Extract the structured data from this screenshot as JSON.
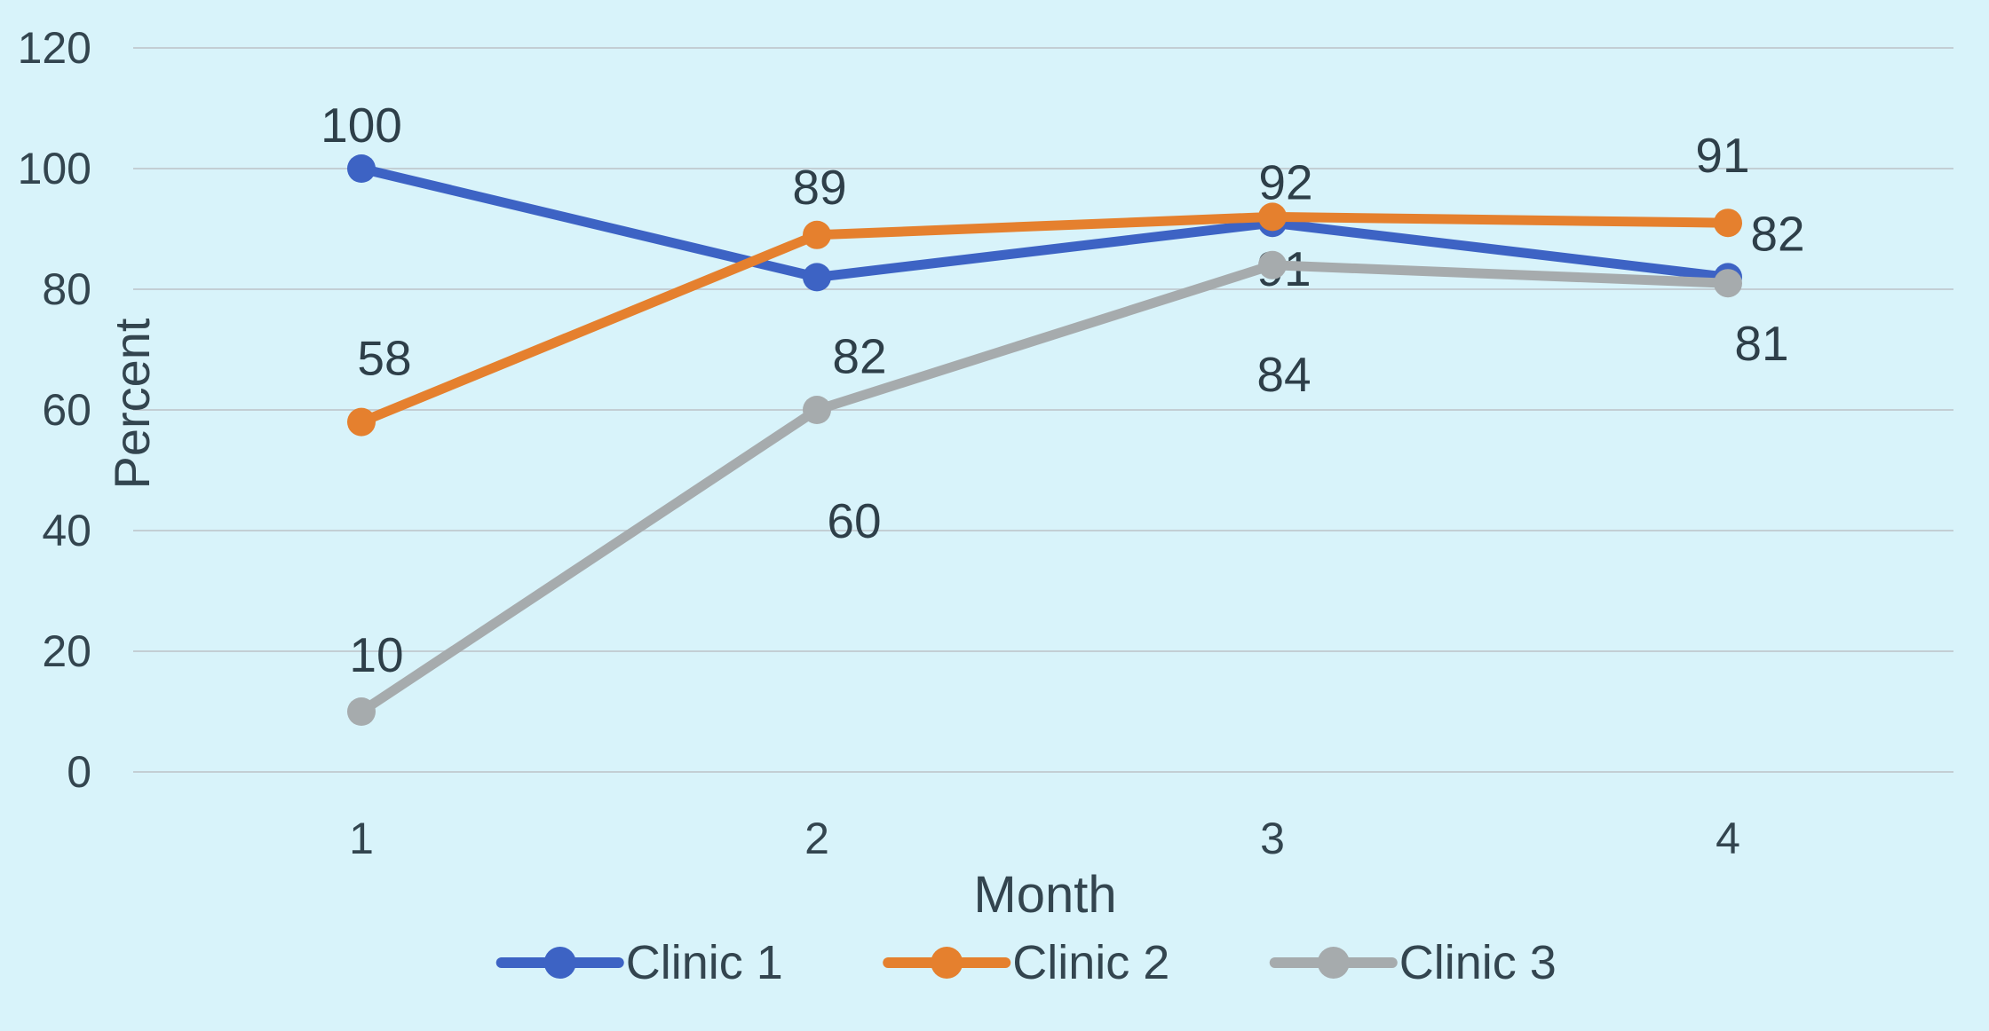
{
  "chart_data": {
    "type": "line",
    "title": "",
    "xlabel": "Month",
    "ylabel": "Percent",
    "categories": [
      "1",
      "2",
      "3",
      "4"
    ],
    "series": [
      {
        "name": "Clinic 1",
        "color": "#3d63c4",
        "values": [
          100,
          82,
          91,
          82
        ]
      },
      {
        "name": "Clinic 2",
        "color": "#e5802e",
        "values": [
          58,
          89,
          92,
          91
        ]
      },
      {
        "name": "Clinic 3",
        "color": "#a6abad",
        "values": [
          10,
          60,
          84,
          81
        ]
      }
    ],
    "data_labels": {
      "clinic_1": [
        "100",
        "82",
        "91",
        "82"
      ],
      "clinic_2": [
        "58",
        "89",
        "92",
        "91"
      ],
      "clinic_3": [
        "10",
        "60",
        "84",
        "81"
      ]
    },
    "ylim": [
      0,
      120
    ],
    "yticks": [
      "0",
      "20",
      "40",
      "60",
      "80",
      "100",
      "120"
    ],
    "grid": true,
    "legend_position": "bottom",
    "legend_entries": [
      "Clinic 1",
      "Clinic 2",
      "Clinic 3"
    ],
    "background_color": "#d8f3fa",
    "gridline_color": "#c3ced4",
    "text_color": "#33454f"
  }
}
